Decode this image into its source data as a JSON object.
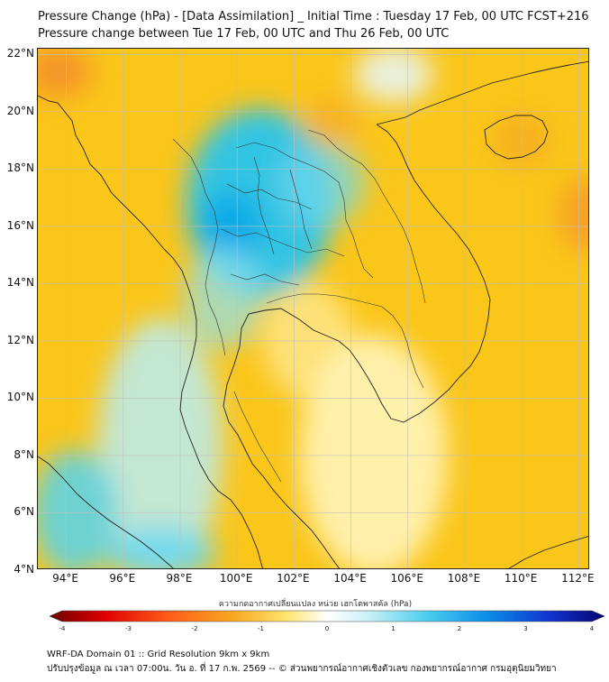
{
  "header": {
    "title_line1": "Pressure Change (hPa) - [Data Assimilation] _ Initial Time : Tuesday 17 Feb, 00 UTC FCST+216",
    "title_line2": "Pressure change between Tue 17 Feb, 00 UTC and Thu 26 Feb, 00 UTC"
  },
  "map": {
    "lat_labels": [
      {
        "text": "22°N",
        "value": 22
      },
      {
        "text": "20°N",
        "value": 20
      },
      {
        "text": "18°N",
        "value": 18
      },
      {
        "text": "16°N",
        "value": 16
      },
      {
        "text": "14°N",
        "value": 14
      },
      {
        "text": "12°N",
        "value": 12
      },
      {
        "text": "10°N",
        "value": 10
      },
      {
        "text": "8°N",
        "value": 8
      },
      {
        "text": "6°N",
        "value": 6
      },
      {
        "text": "4°N",
        "value": 4
      }
    ],
    "lon_labels": [
      {
        "text": "94°E",
        "value": 94
      },
      {
        "text": "96°E",
        "value": 96
      },
      {
        "text": "98°E",
        "value": 98
      },
      {
        "text": "100°E",
        "value": 100
      },
      {
        "text": "102°E",
        "value": 102
      },
      {
        "text": "104°E",
        "value": 104
      },
      {
        "text": "106°E",
        "value": 106
      },
      {
        "text": "108°E",
        "value": 108
      },
      {
        "text": "110°E",
        "value": 110
      },
      {
        "text": "112°E",
        "value": 112
      }
    ],
    "lon_range": [
      93,
      112.4
    ],
    "lat_range": [
      4,
      22.2
    ],
    "grid": true,
    "colors": {
      "background": "#fbc61a",
      "land_outline": "#222222",
      "gridline": "#bfbfbf"
    },
    "anomalies": [
      {
        "lon": 100.8,
        "lat": 16.8,
        "rx": 2.6,
        "ry": 3.3,
        "color": "#27c4ee",
        "opacity": 0.95
      },
      {
        "lon": 99.8,
        "lat": 16.0,
        "rx": 1.1,
        "ry": 1.2,
        "color": "#0ea8e8",
        "opacity": 0.9
      },
      {
        "lon": 103.0,
        "lat": 17.5,
        "rx": 1.5,
        "ry": 1.5,
        "color": "#6fd8f0",
        "opacity": 0.7
      },
      {
        "lon": 99.5,
        "lat": 13.5,
        "rx": 1.4,
        "ry": 1.8,
        "color": "#8fe0f0",
        "opacity": 0.7
      },
      {
        "lon": 97.3,
        "lat": 8.3,
        "rx": 2.2,
        "ry": 4.5,
        "color": "#b8ecf2",
        "opacity": 0.85
      },
      {
        "lon": 94.3,
        "lat": 6.0,
        "rx": 1.5,
        "ry": 2.2,
        "color": "#55d4f0",
        "opacity": 0.85
      },
      {
        "lon": 97.3,
        "lat": 4.6,
        "rx": 2.0,
        "ry": 0.9,
        "color": "#6ad8f2",
        "opacity": 0.85
      },
      {
        "lon": 104.8,
        "lat": 8.0,
        "rx": 2.6,
        "ry": 4.2,
        "color": "#fff7c4",
        "opacity": 0.85
      },
      {
        "lon": 102.5,
        "lat": 12.0,
        "rx": 1.6,
        "ry": 2.0,
        "color": "#fff3b8",
        "opacity": 0.6
      },
      {
        "lon": 105.5,
        "lat": 21.3,
        "rx": 1.4,
        "ry": 1.0,
        "color": "#e6f7fb",
        "opacity": 0.85
      },
      {
        "lon": 93.7,
        "lat": 21.4,
        "rx": 1.2,
        "ry": 0.9,
        "color": "#f38a2a",
        "opacity": 0.8
      },
      {
        "lon": 112.2,
        "lat": 16.4,
        "rx": 0.9,
        "ry": 1.3,
        "color": "#f5952a",
        "opacity": 0.75
      },
      {
        "lon": 110.0,
        "lat": 19.0,
        "rx": 1.0,
        "ry": 0.9,
        "color": "#f4a42a",
        "opacity": 0.6
      },
      {
        "lon": 103.3,
        "lat": 19.6,
        "rx": 1.0,
        "ry": 0.9,
        "color": "#f4a42a",
        "opacity": 0.55
      }
    ]
  },
  "colorbar": {
    "title": "ความกดอากาศเปลี่ยนแปลง หน่วย เฮกโตพาสคัล (hPa)",
    "range": [
      -4,
      4
    ],
    "ticks": [
      {
        "text": "-4",
        "value": -4
      },
      {
        "text": "-3",
        "value": -3
      },
      {
        "text": "-2",
        "value": -2
      },
      {
        "text": "-1",
        "value": -1
      },
      {
        "text": "0",
        "value": 0
      },
      {
        "text": "1",
        "value": 1
      },
      {
        "text": "2",
        "value": 2
      },
      {
        "text": "3",
        "value": 3
      },
      {
        "text": "4",
        "value": 4
      }
    ],
    "color_stops": [
      {
        "value": -4,
        "color": "#6b0000"
      },
      {
        "value": -3.2,
        "color": "#e00000"
      },
      {
        "value": -2.3,
        "color": "#ff5a1a"
      },
      {
        "value": -1.4,
        "color": "#f7a51f"
      },
      {
        "value": -0.6,
        "color": "#ffe36b"
      },
      {
        "value": 0,
        "color": "#ffffff"
      },
      {
        "value": 0.6,
        "color": "#c9f0f7"
      },
      {
        "value": 1.4,
        "color": "#4fd0ef"
      },
      {
        "value": 2.3,
        "color": "#0b8fe8"
      },
      {
        "value": 3.2,
        "color": "#1234d0"
      },
      {
        "value": 4,
        "color": "#050570"
      }
    ]
  },
  "footer": {
    "line1": "WRF-DA Domain 01 :: Grid Resolution 9km x 9km",
    "line2": "ปรับปรุงข้อมูล ณ เวลา 07:00น. วัน อ. ที่ 17 ก.พ. 2569 -- © ส่วนพยากรณ์อากาศเชิงตัวเลข กองพยากรณ์อากาศ กรมอุตุนิยมวิทยา"
  }
}
